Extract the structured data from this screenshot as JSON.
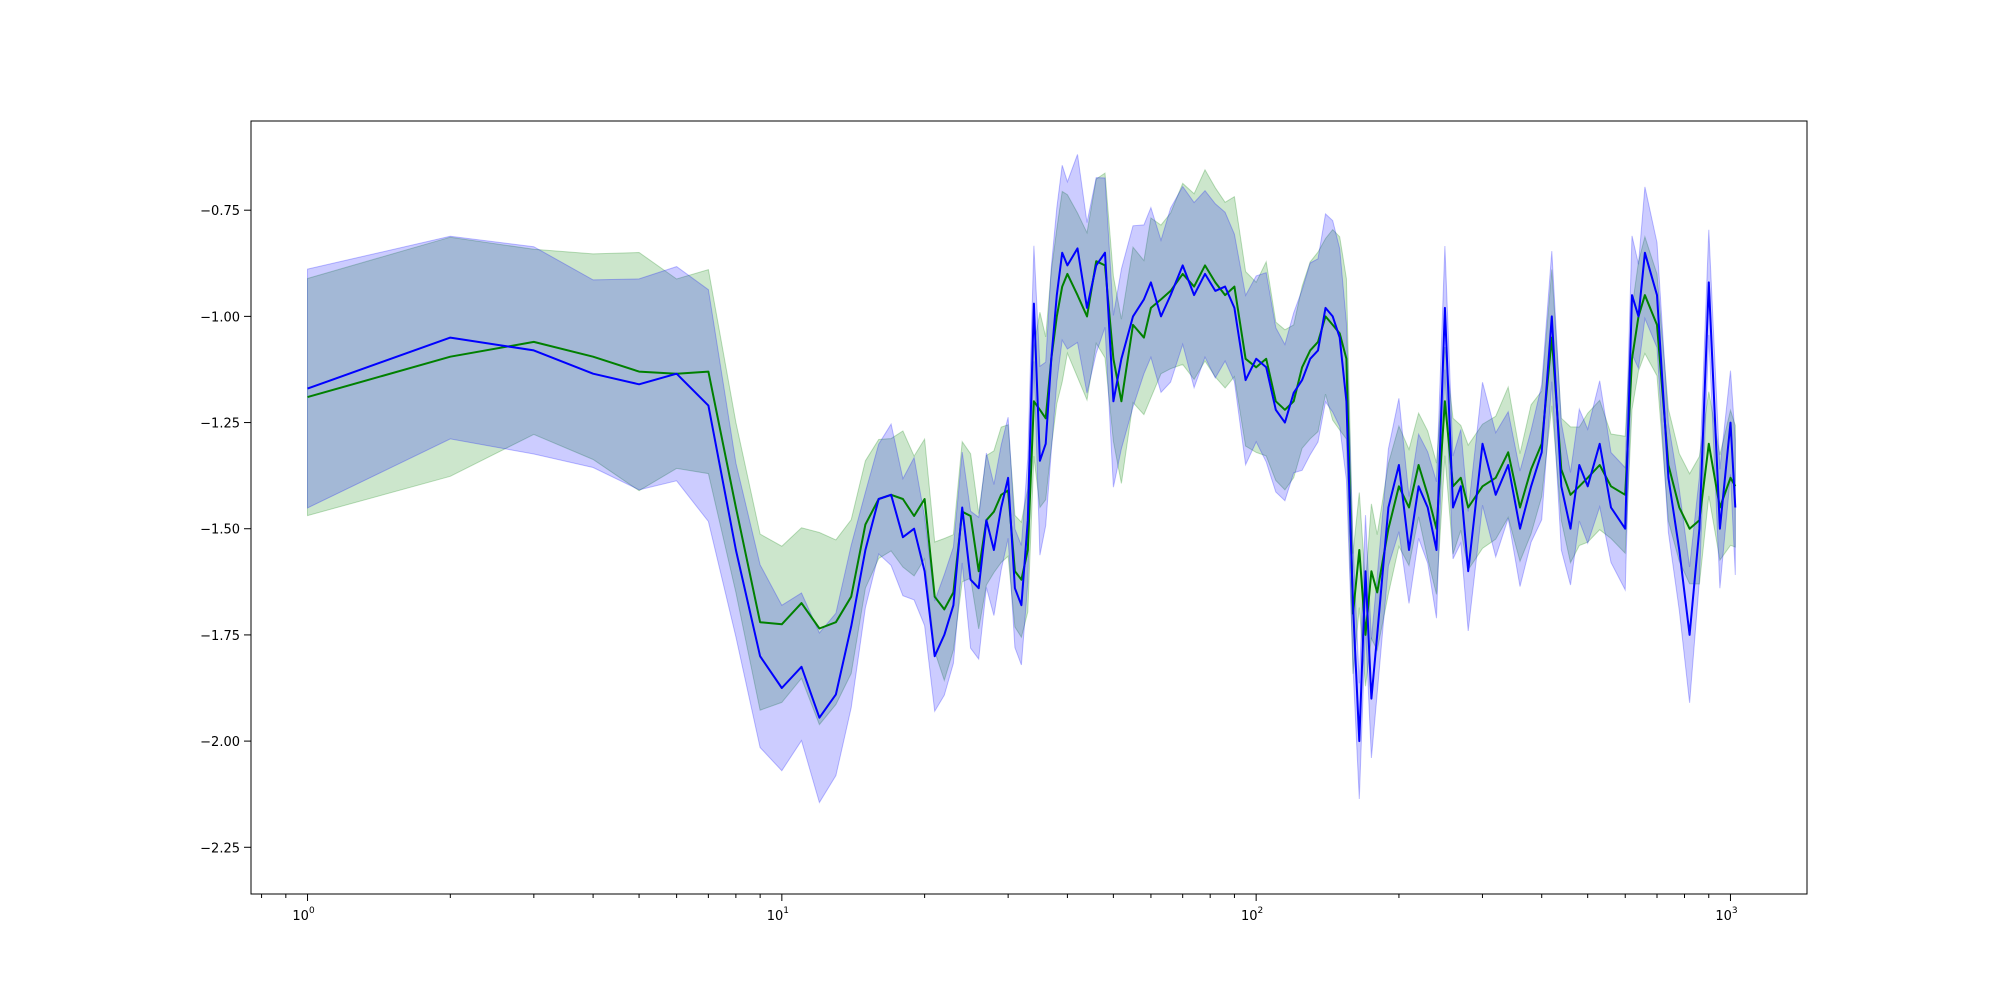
{
  "colors": {
    "green_line": "#008000",
    "green_band": "#008000",
    "blue_line": "#0000ff",
    "blue_band": "#0000ff",
    "axes": "#000000",
    "background": "#ffffff"
  },
  "chart_data": {
    "type": "line",
    "title": "",
    "xlabel": "",
    "ylabel": "",
    "xscale": "log",
    "xlim": [
      0.76,
      1450
    ],
    "ylim": [
      -2.36,
      -0.54
    ],
    "grid": false,
    "legend": "none",
    "x_ticks": [
      {
        "value": 1,
        "base": "10",
        "exp": "0"
      },
      {
        "value": 10,
        "base": "10",
        "exp": "1"
      },
      {
        "value": 100,
        "base": "10",
        "exp": "2"
      },
      {
        "value": 1000,
        "base": "10",
        "exp": "3"
      }
    ],
    "y_ticks": [
      {
        "value": -0.75,
        "label": "−0.75"
      },
      {
        "value": -1.0,
        "label": "−1.00"
      },
      {
        "value": -1.25,
        "label": "−1.25"
      },
      {
        "value": -1.5,
        "label": "−1.50"
      },
      {
        "value": -1.75,
        "label": "−1.75"
      },
      {
        "value": -2.0,
        "label": "−2.00"
      },
      {
        "value": -2.25,
        "label": "−2.25"
      }
    ],
    "series": [
      {
        "color_key": "green",
        "x": [
          1,
          2,
          3,
          4,
          5,
          6,
          7,
          8,
          9,
          10,
          11,
          12,
          13,
          14,
          15,
          16,
          17,
          18,
          19,
          20,
          21,
          22,
          23,
          24,
          25,
          26,
          27,
          28,
          29,
          30,
          31,
          32,
          33,
          34,
          35,
          36,
          37,
          38,
          39,
          40,
          42,
          44,
          46,
          48,
          50,
          52,
          55,
          58,
          60,
          63,
          66,
          70,
          74,
          78,
          82,
          86,
          90,
          95,
          100,
          105,
          110,
          115,
          120,
          125,
          130,
          135,
          140,
          145,
          150,
          155,
          160,
          165,
          170,
          175,
          180,
          190,
          200,
          210,
          220,
          230,
          240,
          250,
          260,
          270,
          280,
          300,
          320,
          340,
          360,
          380,
          400,
          420,
          440,
          460,
          480,
          500,
          530,
          560,
          600,
          620,
          640,
          660,
          700,
          740,
          780,
          820,
          860,
          900,
          950,
          1000,
          1024
        ],
        "y": [
          -1.19,
          -1.095,
          -1.06,
          -1.095,
          -1.13,
          -1.135,
          -1.13,
          -1.45,
          -1.72,
          -1.725,
          -1.675,
          -1.735,
          -1.72,
          -1.66,
          -1.49,
          -1.43,
          -1.42,
          -1.43,
          -1.47,
          -1.43,
          -1.66,
          -1.69,
          -1.65,
          -1.46,
          -1.47,
          -1.6,
          -1.48,
          -1.46,
          -1.42,
          -1.41,
          -1.6,
          -1.62,
          -1.55,
          -1.2,
          -1.22,
          -1.24,
          -1.1,
          -1.0,
          -0.93,
          -0.9,
          -0.95,
          -1.0,
          -0.87,
          -0.88,
          -1.1,
          -1.2,
          -1.02,
          -1.05,
          -0.98,
          -0.96,
          -0.94,
          -0.9,
          -0.93,
          -0.88,
          -0.92,
          -0.95,
          -0.93,
          -1.1,
          -1.12,
          -1.1,
          -1.2,
          -1.22,
          -1.2,
          -1.12,
          -1.08,
          -1.06,
          -1.0,
          -1.02,
          -1.04,
          -1.1,
          -1.7,
          -1.55,
          -1.75,
          -1.6,
          -1.65,
          -1.5,
          -1.4,
          -1.45,
          -1.35,
          -1.42,
          -1.5,
          -1.2,
          -1.4,
          -1.38,
          -1.45,
          -1.4,
          -1.38,
          -1.32,
          -1.45,
          -1.36,
          -1.3,
          -1.05,
          -1.36,
          -1.42,
          -1.4,
          -1.38,
          -1.35,
          -1.4,
          -1.42,
          -1.1,
          -1.0,
          -0.95,
          -1.02,
          -1.35,
          -1.45,
          -1.5,
          -1.48,
          -1.3,
          -1.45,
          -1.38,
          -1.4
        ]
      },
      {
        "color_key": "blue",
        "x": [
          1,
          2,
          3,
          4,
          5,
          6,
          7,
          8,
          9,
          10,
          11,
          12,
          13,
          14,
          15,
          16,
          17,
          18,
          19,
          20,
          21,
          22,
          23,
          24,
          25,
          26,
          27,
          28,
          29,
          30,
          31,
          32,
          33,
          34,
          35,
          36,
          37,
          38,
          39,
          40,
          42,
          44,
          46,
          48,
          50,
          52,
          55,
          58,
          60,
          63,
          66,
          70,
          74,
          78,
          82,
          86,
          90,
          95,
          100,
          105,
          110,
          115,
          120,
          125,
          130,
          135,
          140,
          145,
          150,
          155,
          160,
          165,
          170,
          175,
          180,
          190,
          200,
          210,
          220,
          230,
          240,
          250,
          260,
          270,
          280,
          300,
          320,
          340,
          360,
          380,
          400,
          420,
          440,
          460,
          480,
          500,
          530,
          560,
          600,
          620,
          640,
          660,
          700,
          740,
          780,
          820,
          860,
          900,
          950,
          1000,
          1024
        ],
        "y": [
          -1.17,
          -1.05,
          -1.08,
          -1.135,
          -1.16,
          -1.135,
          -1.21,
          -1.55,
          -1.8,
          -1.875,
          -1.825,
          -1.945,
          -1.89,
          -1.73,
          -1.55,
          -1.43,
          -1.42,
          -1.52,
          -1.5,
          -1.6,
          -1.8,
          -1.75,
          -1.68,
          -1.45,
          -1.62,
          -1.64,
          -1.48,
          -1.55,
          -1.45,
          -1.38,
          -1.64,
          -1.68,
          -1.48,
          -0.97,
          -1.34,
          -1.3,
          -1.1,
          -0.95,
          -0.85,
          -0.88,
          -0.84,
          -0.98,
          -0.88,
          -0.85,
          -1.2,
          -1.1,
          -1.0,
          -0.96,
          -0.92,
          -1.0,
          -0.95,
          -0.88,
          -0.95,
          -0.9,
          -0.94,
          -0.93,
          -0.98,
          -1.15,
          -1.1,
          -1.12,
          -1.22,
          -1.25,
          -1.18,
          -1.15,
          -1.1,
          -1.08,
          -0.98,
          -1.0,
          -1.05,
          -1.2,
          -1.68,
          -2.0,
          -1.6,
          -1.9,
          -1.75,
          -1.45,
          -1.35,
          -1.55,
          -1.4,
          -1.45,
          -1.55,
          -0.98,
          -1.45,
          -1.4,
          -1.6,
          -1.3,
          -1.42,
          -1.35,
          -1.5,
          -1.4,
          -1.32,
          -1.0,
          -1.4,
          -1.5,
          -1.35,
          -1.4,
          -1.3,
          -1.45,
          -1.5,
          -0.95,
          -1.0,
          -0.85,
          -0.95,
          -1.38,
          -1.55,
          -1.75,
          -1.5,
          -0.92,
          -1.5,
          -1.25,
          -1.45
        ]
      }
    ]
  }
}
